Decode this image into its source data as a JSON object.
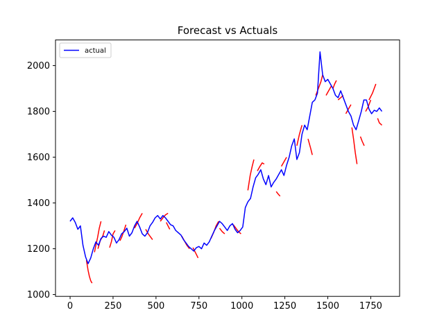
{
  "chart_data": {
    "type": "line",
    "title": "Forecast vs Actuals",
    "xlabel": "",
    "ylabel": "",
    "xlim": [
      -85,
      1918
    ],
    "ylim": [
      992,
      2112
    ],
    "x_ticks": [
      0,
      250,
      500,
      750,
      1000,
      1250,
      1500,
      1750
    ],
    "y_ticks": [
      1000,
      1200,
      1400,
      1600,
      1800,
      2000
    ],
    "x_tick_labels": [
      "0",
      "250",
      "500",
      "750",
      "1000",
      "1250",
      "1500",
      "1750"
    ],
    "y_tick_labels": [
      "1000",
      "1200",
      "1400",
      "1600",
      "1800",
      "2000"
    ],
    "grid": false,
    "legend": {
      "position": "top-left",
      "entries": [
        "actual"
      ]
    },
    "series": [
      {
        "name": "actual",
        "color": "#0000ff",
        "x": [
          0,
          15,
          30,
          45,
          60,
          75,
          90,
          105,
          120,
          135,
          150,
          165,
          180,
          195,
          210,
          225,
          240,
          255,
          270,
          285,
          300,
          315,
          330,
          345,
          360,
          375,
          390,
          405,
          420,
          435,
          450,
          465,
          480,
          495,
          510,
          525,
          540,
          555,
          570,
          585,
          600,
          615,
          630,
          645,
          660,
          675,
          690,
          705,
          720,
          735,
          750,
          765,
          780,
          795,
          810,
          825,
          840,
          855,
          870,
          885,
          900,
          915,
          930,
          945,
          960,
          975,
          990,
          1005,
          1020,
          1035,
          1050,
          1065,
          1080,
          1095,
          1110,
          1125,
          1140,
          1155,
          1170,
          1185,
          1200,
          1215,
          1230,
          1245,
          1260,
          1275,
          1290,
          1305,
          1320,
          1335,
          1350,
          1365,
          1380,
          1395,
          1410,
          1425,
          1440,
          1455,
          1470,
          1485,
          1500,
          1515,
          1530,
          1545,
          1560,
          1575,
          1590,
          1605,
          1620,
          1635,
          1650,
          1665,
          1680,
          1695,
          1710,
          1725,
          1740,
          1755,
          1770,
          1785,
          1800,
          1815
        ],
        "values": [
          1320,
          1335,
          1315,
          1285,
          1300,
          1215,
          1165,
          1135,
          1160,
          1200,
          1230,
          1215,
          1245,
          1255,
          1250,
          1275,
          1260,
          1250,
          1225,
          1240,
          1265,
          1275,
          1290,
          1255,
          1270,
          1300,
          1320,
          1295,
          1265,
          1255,
          1270,
          1300,
          1315,
          1335,
          1345,
          1330,
          1345,
          1335,
          1320,
          1305,
          1300,
          1280,
          1270,
          1260,
          1240,
          1225,
          1210,
          1200,
          1190,
          1205,
          1210,
          1200,
          1225,
          1215,
          1230,
          1255,
          1280,
          1300,
          1320,
          1310,
          1295,
          1280,
          1300,
          1310,
          1285,
          1270,
          1280,
          1295,
          1380,
          1405,
          1420,
          1470,
          1510,
          1525,
          1545,
          1505,
          1480,
          1520,
          1470,
          1490,
          1505,
          1525,
          1545,
          1520,
          1565,
          1600,
          1650,
          1680,
          1590,
          1620,
          1700,
          1740,
          1720,
          1780,
          1840,
          1850,
          1880,
          2060,
          1960,
          1930,
          1940,
          1920,
          1900,
          1870,
          1860,
          1890,
          1860,
          1830,
          1800,
          1780,
          1740,
          1720,
          1760,
          1800,
          1850,
          1850,
          1810,
          1790,
          1805,
          1800,
          1815,
          1800
        ]
      }
    ],
    "forecast_segments": [
      {
        "x": [
          95,
          105,
          112,
          120,
          128
        ],
        "values": [
          1150,
          1105,
          1080,
          1060,
          1050
        ]
      },
      {
        "x": [
          142,
          150,
          160,
          170,
          180
        ],
        "values": [
          1185,
          1215,
          1250,
          1290,
          1320
        ]
      },
      {
        "x": [
          162,
          175,
          190,
          200
        ],
        "values": [
          1200,
          1235,
          1255,
          1280
        ]
      },
      {
        "x": [
          230,
          240,
          250,
          262
        ],
        "values": [
          1205,
          1230,
          1265,
          1280
        ]
      },
      {
        "x": [
          290,
          300,
          312,
          325
        ],
        "values": [
          1235,
          1250,
          1275,
          1305
        ]
      },
      {
        "x": [
          375,
          390,
          405,
          420
        ],
        "values": [
          1290,
          1310,
          1335,
          1355
        ]
      },
      {
        "x": [
          440,
          455,
          470,
          480
        ],
        "values": [
          1285,
          1265,
          1250,
          1240
        ]
      },
      {
        "x": [
          525,
          540,
          555,
          570
        ],
        "values": [
          1320,
          1335,
          1348,
          1355
        ]
      },
      {
        "x": [
          560,
          570,
          580
        ],
        "values": [
          1315,
          1300,
          1285
        ]
      },
      {
        "x": [
          650,
          665,
          680,
          695
        ],
        "values": [
          1255,
          1235,
          1215,
          1200
        ]
      },
      {
        "x": [
          715,
          725,
          735,
          745
        ],
        "values": [
          1205,
          1190,
          1175,
          1160
        ]
      },
      {
        "x": [
          820,
          835,
          850,
          865
        ],
        "values": [
          1245,
          1270,
          1300,
          1320
        ]
      },
      {
        "x": [
          870,
          885,
          900
        ],
        "values": [
          1290,
          1275,
          1265
        ]
      },
      {
        "x": [
          950,
          965,
          980,
          995
        ],
        "values": [
          1305,
          1290,
          1275,
          1265
        ]
      },
      {
        "x": [
          1035,
          1048,
          1060,
          1070
        ],
        "values": [
          1455,
          1520,
          1560,
          1590
        ]
      },
      {
        "x": [
          1090,
          1105,
          1118,
          1130
        ],
        "values": [
          1540,
          1560,
          1575,
          1570
        ]
      },
      {
        "x": [
          1200,
          1210,
          1222
        ],
        "values": [
          1450,
          1440,
          1430
        ]
      },
      {
        "x": [
          1230,
          1245,
          1260
        ],
        "values": [
          1560,
          1580,
          1600
        ]
      },
      {
        "x": [
          1320,
          1335,
          1350
        ],
        "values": [
          1650,
          1700,
          1740
        ]
      },
      {
        "x": [
          1385,
          1400,
          1410
        ],
        "values": [
          1680,
          1640,
          1610
        ]
      },
      {
        "x": [
          1430,
          1445,
          1460,
          1470
        ],
        "values": [
          1870,
          1900,
          1930,
          1960
        ]
      },
      {
        "x": [
          1490,
          1505,
          1520
        ],
        "values": [
          1870,
          1890,
          1910
        ]
      },
      {
        "x": [
          1530,
          1540,
          1550
        ],
        "values": [
          1900,
          1920,
          1935
        ]
      },
      {
        "x": [
          1560,
          1575,
          1590
        ],
        "values": [
          1850,
          1860,
          1870
        ]
      },
      {
        "x": [
          1605,
          1620,
          1635
        ],
        "values": [
          1790,
          1810,
          1830
        ]
      },
      {
        "x": [
          1640,
          1650,
          1660,
          1670
        ],
        "values": [
          1730,
          1680,
          1620,
          1570
        ]
      },
      {
        "x": [
          1690,
          1700,
          1712
        ],
        "values": [
          1690,
          1670,
          1650
        ]
      },
      {
        "x": [
          1720,
          1735,
          1750
        ],
        "values": [
          1800,
          1820,
          1850
        ]
      },
      {
        "x": [
          1740,
          1760,
          1780
        ],
        "values": [
          1850,
          1880,
          1920
        ]
      },
      {
        "x": [
          1790,
          1800,
          1815
        ],
        "values": [
          1770,
          1750,
          1740
        ]
      }
    ],
    "forecast_color": "#ff0000"
  }
}
